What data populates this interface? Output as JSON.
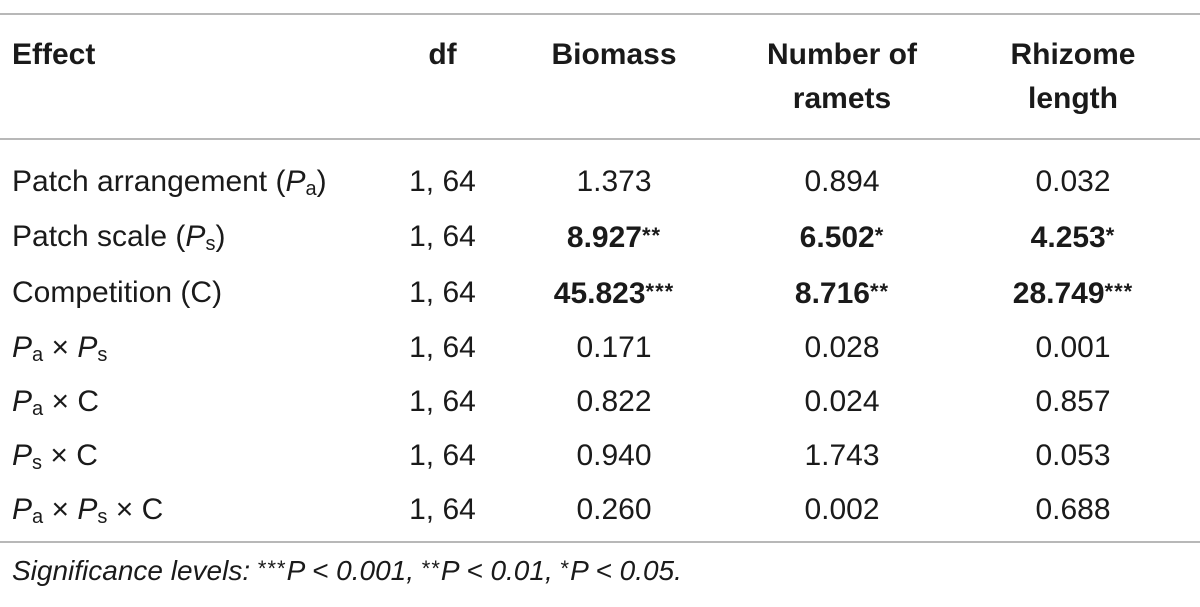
{
  "headers": {
    "effect": "Effect",
    "df": "df",
    "biomass": "Biomass",
    "ramets_line1": "Number of",
    "ramets_line2": "ramets",
    "rhizome_line1": "Rhizome",
    "rhizome_line2": "length"
  },
  "rows": [
    {
      "effect_text": "Patch arrangement (",
      "df": "1, 64",
      "biomass": {
        "value": "1.373",
        "stars": ""
      },
      "ramets": {
        "value": "0.894",
        "stars": ""
      },
      "rhizome": {
        "value": "0.032",
        "stars": ""
      }
    },
    {
      "effect_text": "Patch scale (",
      "df": "1, 64",
      "biomass": {
        "value": "8.927",
        "stars": "**"
      },
      "ramets": {
        "value": "6.502",
        "stars": "*"
      },
      "rhizome": {
        "value": "4.253",
        "stars": "*"
      }
    },
    {
      "effect_text": "Competition (C)",
      "df": "1, 64",
      "biomass": {
        "value": "45.823",
        "stars": "***"
      },
      "ramets": {
        "value": "8.716",
        "stars": "**"
      },
      "rhizome": {
        "value": "28.749",
        "stars": "***"
      }
    },
    {
      "df": "1, 64",
      "biomass": {
        "value": "0.171",
        "stars": ""
      },
      "ramets": {
        "value": "0.028",
        "stars": ""
      },
      "rhizome": {
        "value": "0.001",
        "stars": ""
      }
    },
    {
      "df": "1, 64",
      "biomass": {
        "value": "0.822",
        "stars": ""
      },
      "ramets": {
        "value": "0.024",
        "stars": ""
      },
      "rhizome": {
        "value": "0.857",
        "stars": ""
      }
    },
    {
      "df": "1, 64",
      "biomass": {
        "value": "0.940",
        "stars": ""
      },
      "ramets": {
        "value": "1.743",
        "stars": ""
      },
      "rhizome": {
        "value": "0.053",
        "stars": ""
      }
    },
    {
      "df": "1, 64",
      "biomass": {
        "value": "0.260",
        "stars": ""
      },
      "ramets": {
        "value": "0.002",
        "stars": ""
      },
      "rhizome": {
        "value": "0.688",
        "stars": ""
      }
    }
  ],
  "symbols": {
    "P": "P",
    "a": "a",
    "s": "s",
    "C": "C",
    "times": "×",
    "close_paren": ")"
  },
  "footnote": {
    "label": "Significance levels:",
    "s3": "***",
    "t3": "P < 0.001,",
    "s2": "**",
    "t2": "P < 0.01,",
    "s1": "*",
    "t1": "P < 0.05."
  }
}
